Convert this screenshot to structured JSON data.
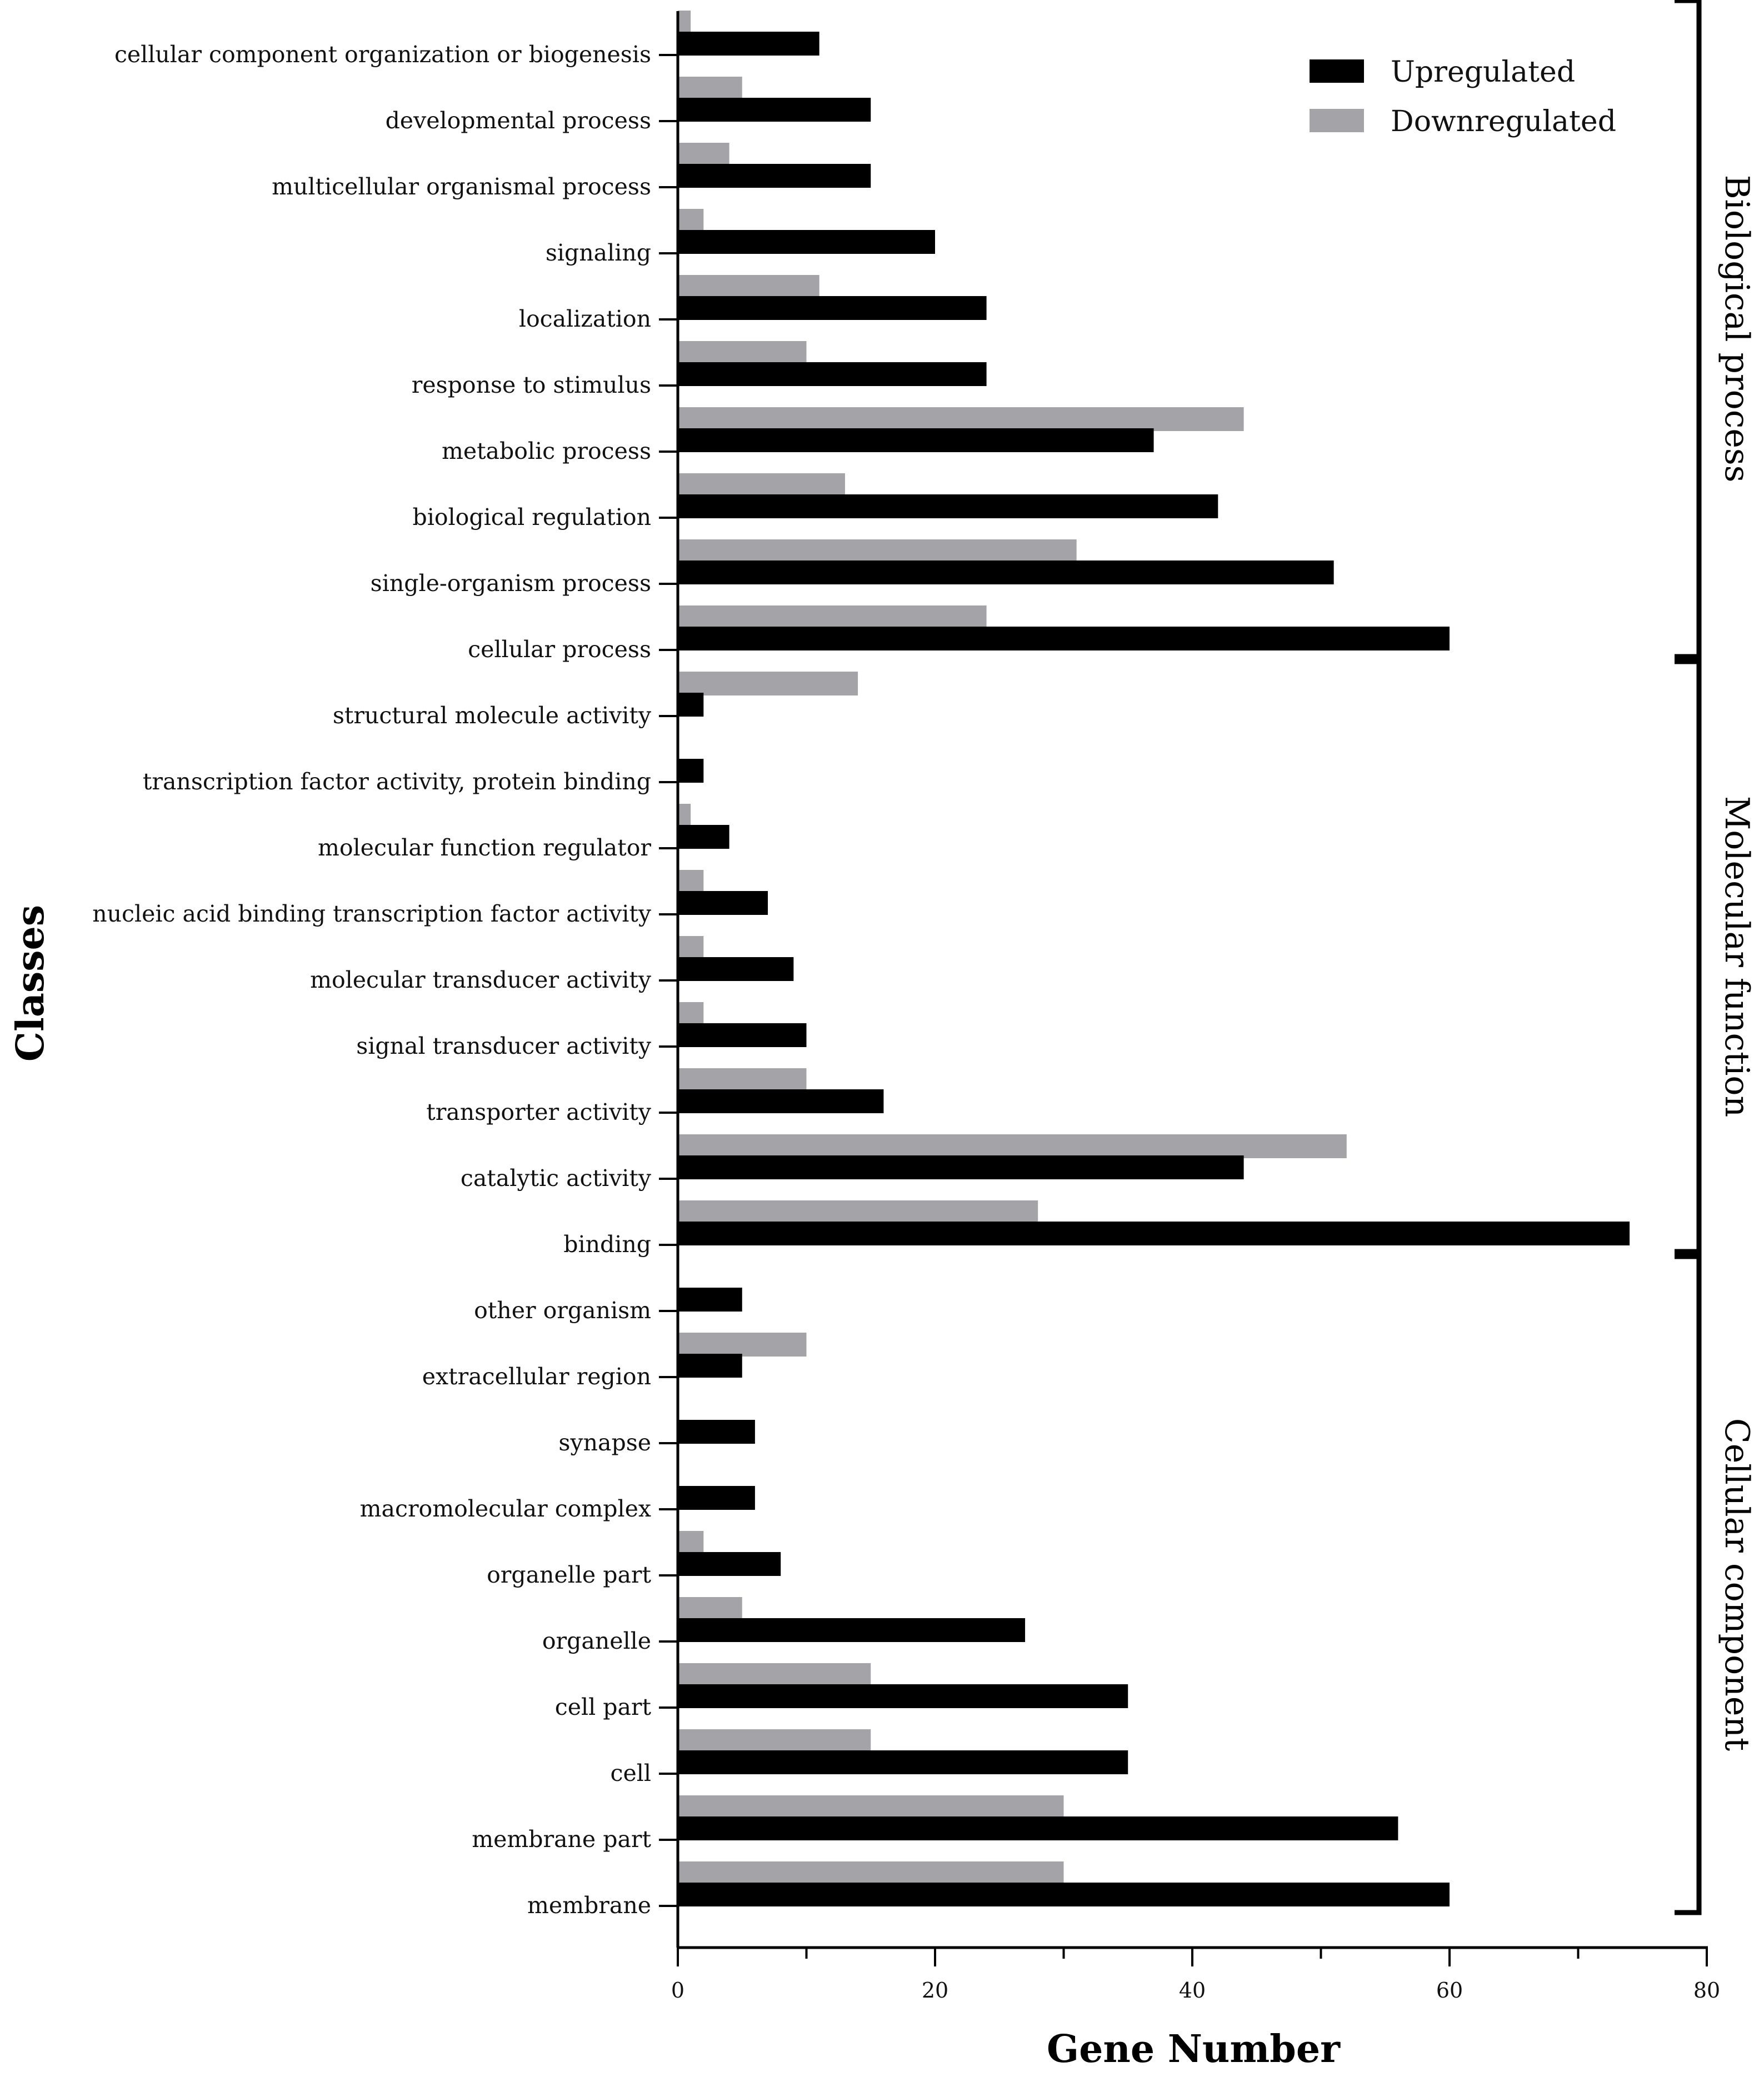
{
  "chart_data": {
    "type": "bar",
    "orientation": "horizontal",
    "xlabel": "Gene Number",
    "ylabel": "Classes",
    "xlim": [
      0,
      80
    ],
    "xticks": [
      0,
      20,
      40,
      60,
      80
    ],
    "legend": {
      "position": "top-right",
      "entries": [
        "Upregulated",
        "Downregulated"
      ]
    },
    "colors": {
      "Upregulated": "#000000",
      "Downregulated": "#a3a3a8"
    },
    "categories": [
      "cellular component organization or biogenesis",
      "developmental process",
      "multicellular organismal process",
      "signaling",
      "localization",
      "response to stimulus",
      "metabolic process",
      "biological regulation",
      "single-organism process",
      "cellular process",
      "structural molecule activity",
      "transcription factor activity, protein binding",
      "molecular function regulator",
      "nucleic acid binding transcription factor activity",
      "molecular transducer activity",
      "signal transducer activity",
      "transporter activity",
      "catalytic activity",
      "binding",
      "other organism",
      "extracellular region",
      "synapse",
      "macromolecular complex",
      "organelle part",
      "organelle",
      "cell part",
      "cell",
      "membrane part",
      "membrane"
    ],
    "series": [
      {
        "name": "Upregulated",
        "values": [
          11,
          15,
          15,
          20,
          24,
          24,
          37,
          42,
          51,
          60,
          2,
          2,
          4,
          7,
          9,
          10,
          16,
          44,
          74,
          5,
          5,
          6,
          6,
          8,
          27,
          35,
          35,
          56,
          60
        ]
      },
      {
        "name": "Downregulated",
        "values": [
          1,
          5,
          4,
          2,
          11,
          10,
          44,
          13,
          31,
          24,
          14,
          0,
          1,
          2,
          2,
          2,
          10,
          52,
          28,
          0,
          10,
          0,
          0,
          2,
          5,
          15,
          15,
          30,
          30
        ]
      }
    ],
    "groups": [
      {
        "label": "Biological process",
        "start": 0,
        "end": 9
      },
      {
        "label": "Molecular function",
        "start": 10,
        "end": 18
      },
      {
        "label": "Cellular component",
        "start": 19,
        "end": 28
      }
    ]
  }
}
